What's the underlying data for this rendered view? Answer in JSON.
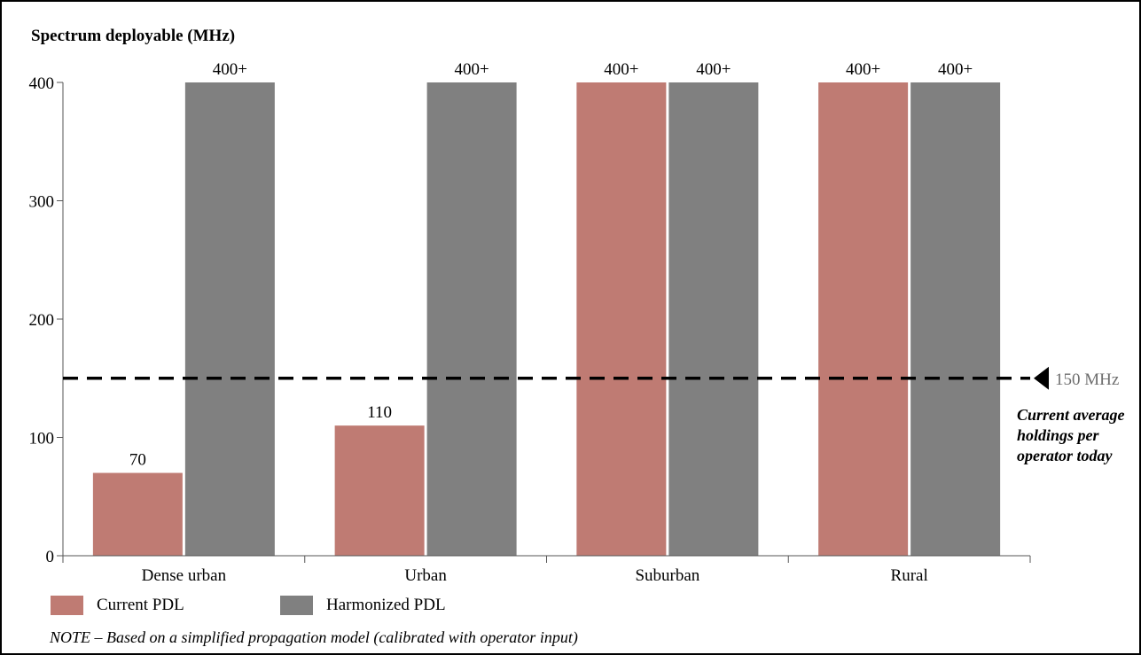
{
  "chart_data": {
    "type": "bar",
    "ylabel": "Spectrum deployable (MHz)",
    "categories": [
      "Dense urban",
      "Urban",
      "Suburban",
      "Rural"
    ],
    "series": [
      {
        "name": "Current PDL",
        "color": "#bf7b73",
        "values": [
          70,
          110,
          400,
          400
        ],
        "labels": [
          "70",
          "110",
          "400+",
          "400+"
        ]
      },
      {
        "name": "Harmonized PDL",
        "color": "#808080",
        "values": [
          400,
          400,
          400,
          400
        ],
        "labels": [
          "400+",
          "400+",
          "400+",
          "400+"
        ]
      }
    ],
    "ylim": [
      0,
      400
    ],
    "yticks": [
      0,
      100,
      200,
      300,
      400
    ],
    "reference_line": {
      "value": 150,
      "label": "150 MHz",
      "note": "Current average holdings per operator today"
    },
    "grid": false,
    "legend_placement": "bottom-left"
  },
  "note": "NOTE – Based on a simplified propagation model (calibrated with operator input)"
}
